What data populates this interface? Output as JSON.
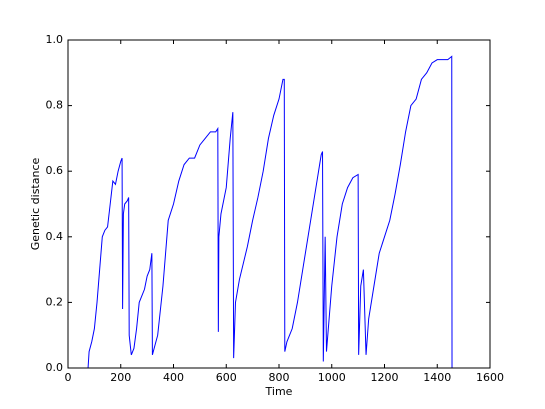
{
  "chart_data": {
    "type": "line",
    "xlabel": "Time",
    "ylabel": "Genetic distance",
    "color": "#0000ff",
    "xlim": [
      0,
      1600
    ],
    "xticks": [
      0,
      200,
      400,
      600,
      800,
      1000,
      1200,
      1400,
      1600
    ],
    "ylim": [
      0,
      1
    ],
    "yticks": [
      {
        "value": 0,
        "label": "0.0"
      },
      0.2,
      0.4,
      0.6,
      0.8,
      {
        "value": 1,
        "label": "1.0"
      }
    ],
    "x": [
      76,
      80,
      90,
      100,
      110,
      120,
      130,
      140,
      150,
      160,
      170,
      180,
      190,
      200,
      205,
      207,
      210,
      215,
      225,
      230,
      232,
      240,
      250,
      260,
      270,
      290,
      300,
      310,
      318,
      320,
      330,
      340,
      360,
      380,
      400,
      420,
      440,
      460,
      480,
      500,
      520,
      540,
      560,
      568,
      570,
      572,
      580,
      600,
      615,
      625,
      628,
      635,
      650,
      680,
      700,
      720,
      740,
      760,
      780,
      800,
      815,
      820,
      822,
      830,
      850,
      870,
      890,
      920,
      940,
      960,
      965,
      968,
      975,
      980,
      985,
      1000,
      1020,
      1040,
      1060,
      1080,
      1100,
      1102,
      1110,
      1120,
      1130,
      1140,
      1160,
      1180,
      1200,
      1220,
      1240,
      1260,
      1280,
      1300,
      1320,
      1340,
      1360,
      1380,
      1400,
      1440,
      1455,
      1456
    ],
    "values": [
      0,
      0.05,
      0.08,
      0.12,
      0.2,
      0.3,
      0.4,
      0.42,
      0.43,
      0.5,
      0.57,
      0.56,
      0.6,
      0.63,
      0.64,
      0.18,
      0.47,
      0.5,
      0.51,
      0.52,
      0.1,
      0.04,
      0.06,
      0.12,
      0.2,
      0.24,
      0.28,
      0.3,
      0.35,
      0.04,
      0.07,
      0.1,
      0.25,
      0.45,
      0.5,
      0.57,
      0.62,
      0.64,
      0.64,
      0.68,
      0.7,
      0.72,
      0.72,
      0.73,
      0.11,
      0.4,
      0.47,
      0.55,
      0.7,
      0.78,
      0.03,
      0.2,
      0.27,
      0.37,
      0.45,
      0.52,
      0.6,
      0.7,
      0.77,
      0.82,
      0.88,
      0.88,
      0.05,
      0.08,
      0.12,
      0.2,
      0.3,
      0.45,
      0.55,
      0.65,
      0.66,
      0.02,
      0.4,
      0.05,
      0.1,
      0.25,
      0.4,
      0.5,
      0.55,
      0.58,
      0.59,
      0.04,
      0.25,
      0.3,
      0.04,
      0.15,
      0.25,
      0.35,
      0.4,
      0.45,
      0.53,
      0.62,
      0.72,
      0.8,
      0.82,
      0.88,
      0.9,
      0.93,
      0.94,
      0.94,
      0.95,
      0
    ]
  }
}
